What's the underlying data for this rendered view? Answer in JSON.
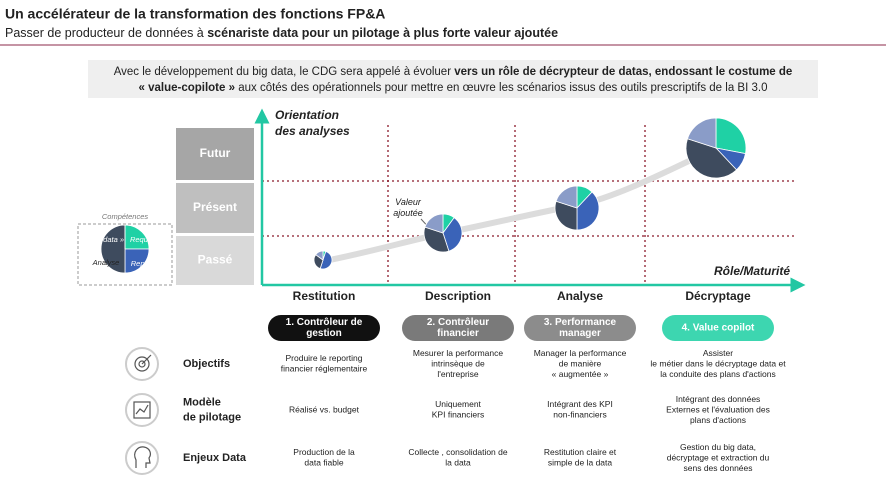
{
  "header": {
    "title": "Un accélérateur de la transformation des fonctions FP&A",
    "subtitle": [
      {
        "text": "Passer de producteur de données à ",
        "bold": false
      },
      {
        "text": "scénariste data pour un pilotage à plus forte valeur ajoutée",
        "bold": true
      }
    ]
  },
  "intro": [
    [
      {
        "text": "Avec le développement du big data, le CDG sera appelé à évoluer ",
        "bold": false
      },
      {
        "text": "vers un rôle de décrypteur de datas, endossant le costume de",
        "bold": true
      }
    ],
    [
      {
        "text": "« value-copilote »",
        "bold": true
      },
      {
        "text": " aux côtés des opérationnels pour mettre en œuvre les scénarios issus des outils prescriptifs de la  BI 3.0",
        "bold": false
      }
    ]
  ],
  "chart": {
    "y_axis_label": [
      "Orientation",
      "des analyses"
    ],
    "x_axis_label": "Rôle/Maturité",
    "levels": [
      "Futur",
      "Présent",
      "Passé"
    ],
    "annotation": [
      "Valeur",
      "ajoutée"
    ],
    "legend": {
      "title": "Compétences",
      "quadrants": [
        "« Big data »",
        "Requêtes",
        "Analyse",
        "Reporting"
      ]
    }
  },
  "stages": [
    {
      "name": "Restitution",
      "badge": [
        "1. Contrôleur de",
        "gestion"
      ],
      "badge_color": "#111111"
    },
    {
      "name": "Description",
      "badge": [
        "2. Contrôleur",
        "financier"
      ],
      "badge_color": "#7a7a7a"
    },
    {
      "name": "Analyse",
      "badge": [
        "3. Performance",
        "manager"
      ],
      "badge_color": "#8c8c8c"
    },
    {
      "name": "Décryptage",
      "badge": [
        "4. Value copilot"
      ],
      "badge_color": "#3dd6b0"
    }
  ],
  "rows": [
    {
      "label": [
        "Objectifs"
      ],
      "cells": [
        [
          "Produire le reporting",
          "financier réglementaire"
        ],
        [
          "Mesurer la performance",
          "intrinsèque de",
          "l'entreprise"
        ],
        [
          "Manager la performance",
          "de manière",
          "« augmentée »"
        ],
        [
          "Assister",
          "le métier dans le décryptage data et",
          "la conduite des plans d'actions"
        ]
      ]
    },
    {
      "label": [
        "Modèle",
        "de pilotage"
      ],
      "cells": [
        [
          "Réalisé vs. budget"
        ],
        [
          "Uniquement",
          "KPI financiers"
        ],
        [
          "Intégrant des KPI",
          "non-financiers"
        ],
        [
          "Intégrant des données",
          "Externes et l'évaluation des",
          "plans d'actions"
        ]
      ]
    },
    {
      "label": [
        "Enjeux Data"
      ],
      "cells": [
        [
          "Production de la",
          "data fiable"
        ],
        [
          "Collecte , consolidation de",
          "la data"
        ],
        [
          "Restitution claire et",
          "simple de la data"
        ],
        [
          "Gestion du big data,",
          "décryptage et extraction du",
          "sens des données"
        ]
      ]
    }
  ]
}
